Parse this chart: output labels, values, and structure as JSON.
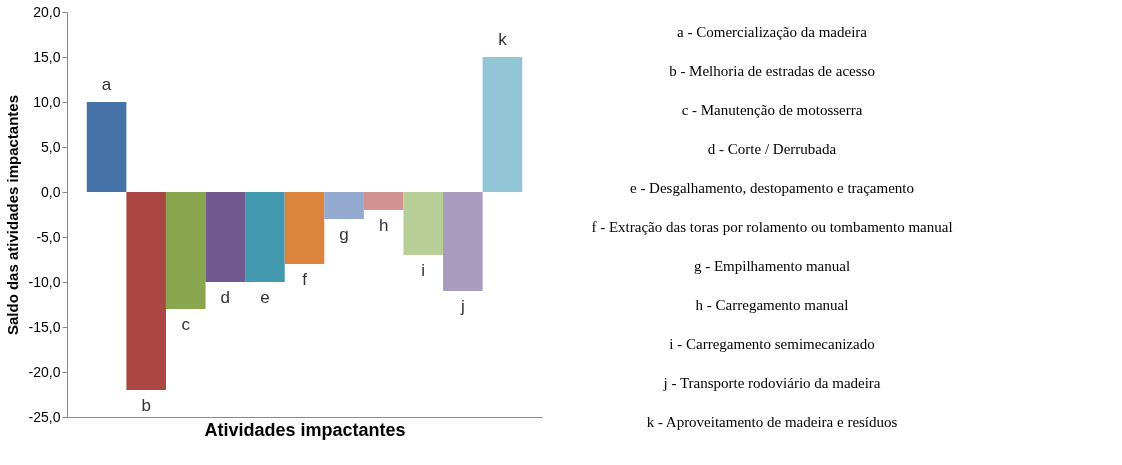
{
  "chart_data": {
    "type": "bar",
    "xlabel": "Atividades impactantes",
    "ylabel": "Saldo das atividades impactantes",
    "categories": [
      "a",
      "b",
      "c",
      "d",
      "e",
      "f",
      "g",
      "h",
      "i",
      "j",
      "k"
    ],
    "values": [
      10,
      -22,
      -13,
      -10,
      -10,
      -8,
      -3,
      -2,
      -7,
      -11,
      15
    ],
    "colors": [
      "#4572a7",
      "#aa4643",
      "#89a54e",
      "#71588f",
      "#4198af",
      "#db843d",
      "#93a9cf",
      "#d19392",
      "#b9cd96",
      "#a99bbd",
      "#92c5d6"
    ],
    "ylim": [
      -25,
      20
    ],
    "yticks": [
      {
        "value": -25,
        "label": "-25,0"
      },
      {
        "value": -20,
        "label": "-20,0"
      },
      {
        "value": -15,
        "label": "-15,0"
      },
      {
        "value": -10,
        "label": "-10,0"
      },
      {
        "value": -5,
        "label": "-5,0"
      },
      {
        "value": 0,
        "label": "0,0"
      },
      {
        "value": 5,
        "label": "5,0"
      },
      {
        "value": 10,
        "label": "10,0"
      },
      {
        "value": 15,
        "label": "15,0"
      },
      {
        "value": 20,
        "label": "20,0"
      }
    ],
    "grid": false,
    "legend": false,
    "annotations": [
      "a - Comercialização da madeira",
      "b - Melhoria de estradas de acesso",
      "c - Manutenção de motosserra",
      "d - Corte / Derrubada",
      "e - Desgalhamento, destopamento e traçamento",
      "f - Extração das toras por rolamento ou tombamento manual",
      "g - Empilhamento manual",
      "h - Carregamento manual",
      "i - Carregamento semimecanizado",
      "j - Transporte rodoviário da madeira",
      "k - Aproveitamento de madeira e resíduos"
    ]
  }
}
